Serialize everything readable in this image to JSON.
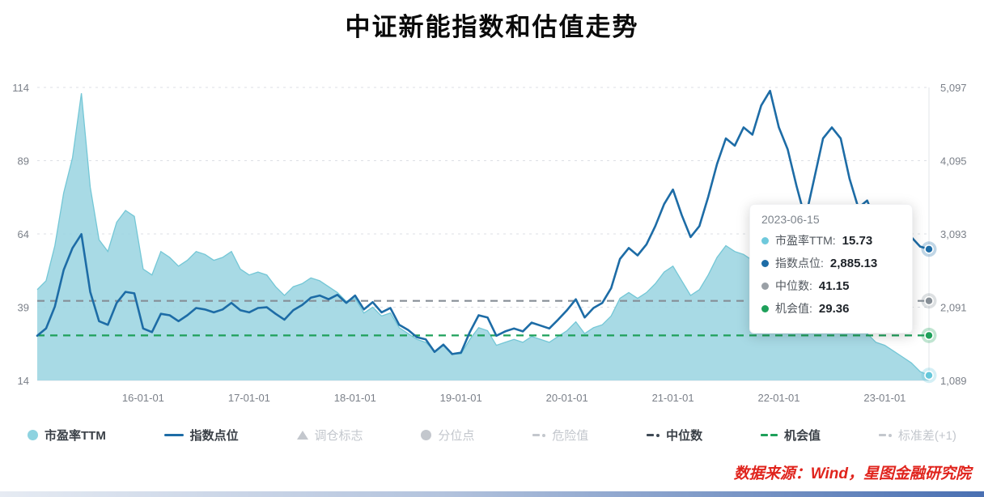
{
  "page": {
    "title": "中证新能指数和估值走势",
    "source": "数据来源：Wind，星图金融研究院"
  },
  "tooltip": {
    "date": "2023-06-15",
    "rows": [
      {
        "name": "pe-ttm",
        "label": "市盈率TTM:",
        "value": "15.73",
        "color": "#6fc9dc"
      },
      {
        "name": "index-level",
        "label": "指数点位:",
        "value": "2,885.13",
        "color": "#1d6ca6"
      },
      {
        "name": "median",
        "label": "中位数:",
        "value": "41.15",
        "color": "#9aa0a6"
      },
      {
        "name": "opportunity",
        "label": "机会值:",
        "value": "29.36",
        "color": "#1ea05a"
      }
    ]
  },
  "legend": [
    {
      "name": "pe-ttm",
      "label": "市盈率TTM",
      "marker": "circle",
      "color": "#8ed3e0",
      "enabled": true
    },
    {
      "name": "index-level",
      "label": "指数点位",
      "marker": "line",
      "color": "#1d6ca6",
      "enabled": true
    },
    {
      "name": "rebalance-flag",
      "label": "调仓标志",
      "marker": "triangle",
      "color": "#c3c7cd",
      "enabled": false
    },
    {
      "name": "percentile-point",
      "label": "分位点",
      "marker": "circle",
      "color": "#c3c7cd",
      "enabled": false
    },
    {
      "name": "danger-value",
      "label": "危险值",
      "marker": "dashdot",
      "color": "#c3c7cd",
      "enabled": false
    },
    {
      "name": "median",
      "label": "中位数",
      "marker": "dashdot",
      "color": "#3f4a55",
      "enabled": true
    },
    {
      "name": "opportunity-value",
      "label": "机会值",
      "marker": "dash",
      "color": "#1ea05a",
      "enabled": true
    },
    {
      "name": "std-plus-1",
      "label": "标准差(+1)",
      "marker": "dashdot",
      "color": "#c3c7cd",
      "enabled": false
    }
  ],
  "chart_data": {
    "type": "line",
    "title": "中证新能指数和估值走势",
    "xlabel": "",
    "ylabel_left": "市盈率TTM",
    "ylabel_right": "指数点位",
    "grid": true,
    "legend_position": "bottom",
    "left_axis": {
      "min": 14,
      "max": 114,
      "ticks": [
        14,
        39,
        64,
        89,
        114
      ]
    },
    "right_axis": {
      "min": 1089,
      "max": 5097,
      "ticks": [
        "1,089",
        "2,091",
        "3,093",
        "4,095",
        "5,097"
      ]
    },
    "x_ticks": [
      "16-01-01",
      "17-01-01",
      "18-01-01",
      "19-01-01",
      "20-01-01",
      "21-01-01",
      "22-01-01",
      "23-01-01"
    ],
    "x": [
      "2015-01",
      "2015-02",
      "2015-03",
      "2015-04",
      "2015-05",
      "2015-06",
      "2015-07",
      "2015-08",
      "2015-09",
      "2015-10",
      "2015-11",
      "2015-12",
      "2016-01",
      "2016-02",
      "2016-03",
      "2016-04",
      "2016-05",
      "2016-06",
      "2016-07",
      "2016-08",
      "2016-09",
      "2016-10",
      "2016-11",
      "2016-12",
      "2017-01",
      "2017-02",
      "2017-03",
      "2017-04",
      "2017-05",
      "2017-06",
      "2017-07",
      "2017-08",
      "2017-09",
      "2017-10",
      "2017-11",
      "2017-12",
      "2018-01",
      "2018-02",
      "2018-03",
      "2018-04",
      "2018-05",
      "2018-06",
      "2018-07",
      "2018-08",
      "2018-09",
      "2018-10",
      "2018-11",
      "2018-12",
      "2019-01",
      "2019-02",
      "2019-03",
      "2019-04",
      "2019-05",
      "2019-06",
      "2019-07",
      "2019-08",
      "2019-09",
      "2019-10",
      "2019-11",
      "2019-12",
      "2020-01",
      "2020-02",
      "2020-03",
      "2020-04",
      "2020-05",
      "2020-06",
      "2020-07",
      "2020-08",
      "2020-09",
      "2020-10",
      "2020-11",
      "2020-12",
      "2021-01",
      "2021-02",
      "2021-03",
      "2021-04",
      "2021-05",
      "2021-06",
      "2021-07",
      "2021-08",
      "2021-09",
      "2021-10",
      "2021-11",
      "2021-12",
      "2022-01",
      "2022-02",
      "2022-03",
      "2022-04",
      "2022-05",
      "2022-06",
      "2022-07",
      "2022-08",
      "2022-09",
      "2022-10",
      "2022-11",
      "2022-12",
      "2023-01",
      "2023-02",
      "2023-03",
      "2023-04",
      "2023-05",
      "2023-06"
    ],
    "series": [
      {
        "name": "市盈率TTM",
        "semantic": "pe-ttm-area",
        "axis": "left",
        "style": "area",
        "color": "#9fd6e2",
        "edge_color": "#74c7d6",
        "marker_color": "#66c7da",
        "values": [
          45,
          48,
          60,
          78,
          90,
          112,
          80,
          62,
          58,
          68,
          72,
          70,
          52,
          50,
          58,
          56,
          53,
          55,
          58,
          57,
          55,
          56,
          58,
          52,
          50,
          51,
          50,
          46,
          43,
          46,
          47,
          49,
          48,
          46,
          44,
          41,
          42,
          37,
          39,
          36,
          37,
          32,
          30,
          28,
          27,
          24,
          26,
          23,
          23,
          28,
          32,
          31,
          26,
          27,
          28,
          27,
          29,
          28,
          27,
          29,
          31,
          34,
          30,
          32,
          33,
          36,
          42,
          44,
          42,
          44,
          47,
          51,
          53,
          48,
          43,
          45,
          50,
          56,
          60,
          58,
          57,
          55,
          57,
          54,
          47,
          43,
          37,
          32,
          37,
          43,
          45,
          43,
          37,
          32,
          30,
          27,
          26,
          24,
          22,
          20,
          17,
          15.73
        ]
      },
      {
        "name": "指数点位",
        "semantic": "index-line",
        "axis": "right",
        "style": "line",
        "color": "#1d6ca6",
        "values": [
          1700,
          1800,
          2100,
          2600,
          2900,
          3090,
          2300,
          1900,
          1850,
          2150,
          2300,
          2280,
          1800,
          1750,
          2000,
          1980,
          1900,
          1980,
          2080,
          2060,
          2020,
          2060,
          2150,
          2050,
          2020,
          2080,
          2090,
          2000,
          1920,
          2050,
          2120,
          2220,
          2250,
          2200,
          2260,
          2150,
          2250,
          2060,
          2160,
          2020,
          2080,
          1850,
          1780,
          1680,
          1650,
          1480,
          1580,
          1450,
          1470,
          1750,
          1980,
          1950,
          1700,
          1760,
          1800,
          1760,
          1880,
          1840,
          1800,
          1920,
          2050,
          2200,
          1950,
          2080,
          2150,
          2350,
          2750,
          2900,
          2800,
          2950,
          3200,
          3500,
          3700,
          3350,
          3050,
          3200,
          3600,
          4050,
          4400,
          4300,
          4550,
          4450,
          4850,
          5050,
          4550,
          4250,
          3750,
          3300,
          3850,
          4400,
          4550,
          4400,
          3850,
          3450,
          3550,
          3250,
          3200,
          3300,
          3150,
          3050,
          2920,
          2885.13
        ]
      }
    ],
    "reference_lines": [
      {
        "name": "中位数",
        "semantic": "median-line",
        "axis": "left",
        "value": 41.15,
        "color": "#868e96",
        "style": "dashed"
      },
      {
        "name": "机会值",
        "semantic": "opportunity-line",
        "axis": "left",
        "value": 29.36,
        "color": "#1ea05a",
        "style": "dashed"
      }
    ]
  }
}
